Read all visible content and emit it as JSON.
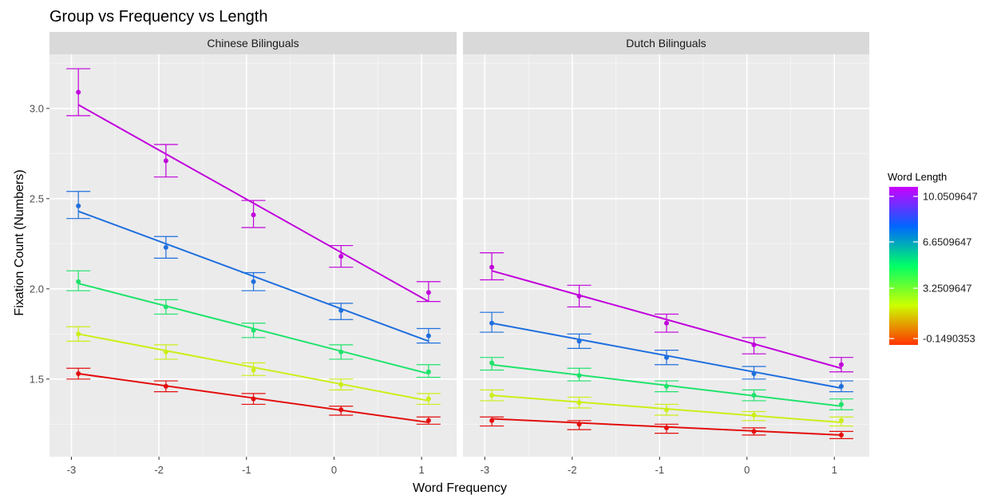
{
  "chart_data": {
    "type": "line",
    "title": "Group vs Frequency vs Length",
    "xlabel": "Word Frequency",
    "ylabel": "Fixation Count (Numbers)",
    "x_ticks": [
      -3,
      -2,
      -1,
      0,
      1
    ],
    "y_ticks": [
      1.5,
      2.0,
      2.5,
      3.0
    ],
    "y_tick_labels": [
      "1.5",
      "2.0",
      "2.5",
      "3.0"
    ],
    "xlim": [
      -3.25,
      1.4
    ],
    "ylim": [
      1.07,
      3.3
    ],
    "grid": true,
    "legend": {
      "title": "Word Length",
      "placement": "right",
      "labels": [
        "10.0509647",
        "6.6509647",
        "3.2509647",
        "-0.1490353"
      ],
      "gradient_colors": [
        "#CC00FF",
        "#0066FF",
        "#00FF66",
        "#CCFF00",
        "#FF3300"
      ]
    },
    "x": [
      -2.92,
      -1.92,
      -0.92,
      0.08,
      1.08
    ],
    "panels": [
      {
        "strip": "Chinese Bilinguals",
        "series": [
          {
            "color": "#C100DC",
            "values": [
              3.09,
              2.71,
              2.41,
              2.18,
              1.98
            ],
            "lower": [
              2.96,
              2.62,
              2.34,
              2.12,
              1.93
            ],
            "upper": [
              3.22,
              2.8,
              2.49,
              2.24,
              2.04
            ],
            "fit": [
              3.02,
              1.93
            ]
          },
          {
            "color": "#1F6FDE",
            "values": [
              2.46,
              2.23,
              2.04,
              1.88,
              1.74
            ],
            "lower": [
              2.39,
              2.17,
              1.99,
              1.83,
              1.7
            ],
            "upper": [
              2.54,
              2.29,
              2.09,
              1.92,
              1.78
            ],
            "fit": [
              2.43,
              1.71
            ]
          },
          {
            "color": "#1FE36B",
            "values": [
              2.04,
              1.9,
              1.77,
              1.65,
              1.54
            ],
            "lower": [
              1.99,
              1.86,
              1.73,
              1.61,
              1.51
            ],
            "upper": [
              2.1,
              1.94,
              1.81,
              1.69,
              1.58
            ],
            "fit": [
              2.03,
              1.53
            ]
          },
          {
            "color": "#CBEF17",
            "values": [
              1.75,
              1.65,
              1.55,
              1.47,
              1.39
            ],
            "lower": [
              1.71,
              1.61,
              1.52,
              1.44,
              1.36
            ],
            "upper": [
              1.79,
              1.69,
              1.59,
              1.5,
              1.42
            ],
            "fit": [
              1.75,
              1.38
            ]
          },
          {
            "color": "#E40D0D",
            "values": [
              1.53,
              1.46,
              1.39,
              1.33,
              1.27
            ],
            "lower": [
              1.5,
              1.43,
              1.36,
              1.3,
              1.25
            ],
            "upper": [
              1.56,
              1.49,
              1.42,
              1.35,
              1.29
            ],
            "fit": [
              1.53,
              1.26
            ]
          }
        ]
      },
      {
        "strip": "Dutch Bilinguals",
        "series": [
          {
            "color": "#C100DC",
            "values": [
              2.12,
              1.96,
              1.81,
              1.69,
              1.58
            ],
            "lower": [
              2.05,
              1.9,
              1.76,
              1.64,
              1.54
            ],
            "upper": [
              2.2,
              2.02,
              1.86,
              1.73,
              1.62
            ],
            "fit": [
              2.1,
              1.56
            ]
          },
          {
            "color": "#1F6FDE",
            "values": [
              1.81,
              1.71,
              1.62,
              1.53,
              1.46
            ],
            "lower": [
              1.76,
              1.67,
              1.58,
              1.5,
              1.43
            ],
            "upper": [
              1.87,
              1.75,
              1.66,
              1.57,
              1.49
            ],
            "fit": [
              1.81,
              1.45
            ]
          },
          {
            "color": "#1FE36B",
            "values": [
              1.59,
              1.52,
              1.46,
              1.41,
              1.36
            ],
            "lower": [
              1.55,
              1.49,
              1.43,
              1.38,
              1.33
            ],
            "upper": [
              1.62,
              1.56,
              1.49,
              1.44,
              1.39
            ],
            "fit": [
              1.58,
              1.35
            ]
          },
          {
            "color": "#CBEF17",
            "values": [
              1.41,
              1.37,
              1.33,
              1.3,
              1.27
            ],
            "lower": [
              1.38,
              1.34,
              1.3,
              1.27,
              1.24
            ],
            "upper": [
              1.44,
              1.4,
              1.36,
              1.32,
              1.29
            ],
            "fit": [
              1.41,
              1.26
            ]
          },
          {
            "color": "#E40D0D",
            "values": [
              1.27,
              1.25,
              1.23,
              1.21,
              1.19
            ],
            "lower": [
              1.24,
              1.22,
              1.2,
              1.19,
              1.17
            ],
            "upper": [
              1.29,
              1.27,
              1.25,
              1.23,
              1.21
            ],
            "fit": [
              1.28,
              1.19
            ]
          }
        ]
      }
    ]
  }
}
